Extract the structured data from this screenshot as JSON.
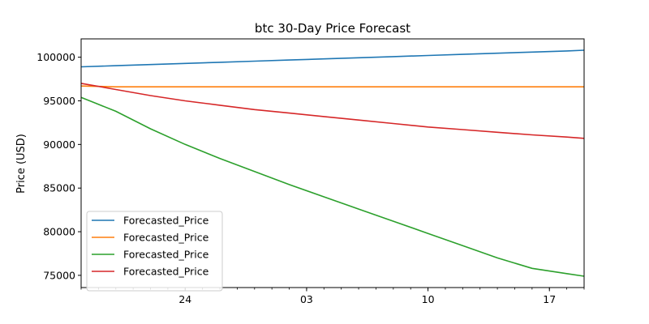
{
  "chart_data": {
    "type": "line",
    "title": "btc 30-Day Price Forecast",
    "xlabel": "",
    "ylabel": "Price (USD)",
    "x": [
      0,
      2,
      4,
      6,
      8,
      10,
      12,
      14,
      16,
      18,
      20,
      22,
      24,
      26,
      28,
      29
    ],
    "xlim": [
      0,
      29
    ],
    "ylim": [
      73600,
      102100
    ],
    "yticks": [
      75000,
      80000,
      85000,
      90000,
      95000,
      100000
    ],
    "xticks": [
      {
        "x": 6,
        "label": "24"
      },
      {
        "x": 13,
        "label": "03"
      },
      {
        "x": 20,
        "label": "10"
      },
      {
        "x": 27,
        "label": "17"
      }
    ],
    "xminor": [
      0,
      1,
      2,
      3,
      4,
      5,
      6,
      7,
      8,
      9,
      10,
      11,
      12,
      13,
      14,
      15,
      16,
      17,
      18,
      19,
      20,
      21,
      22,
      23,
      24,
      25,
      26,
      27,
      28,
      29
    ],
    "grid": false,
    "legend": "lower-left",
    "series": [
      {
        "name": "Forecasted_Price",
        "color": "#1f77b4",
        "values": [
          98900,
          99030,
          99160,
          99290,
          99420,
          99550,
          99680,
          99810,
          99940,
          100070,
          100200,
          100330,
          100460,
          100590,
          100720,
          100800
        ]
      },
      {
        "name": "Forecasted_Price",
        "color": "#ff7f0e",
        "values": [
          96700,
          96600,
          96600,
          96600,
          96600,
          96600,
          96600,
          96600,
          96600,
          96600,
          96600,
          96600,
          96600,
          96600,
          96600,
          96600
        ]
      },
      {
        "name": "Forecasted_Price",
        "color": "#2ca02c",
        "values": [
          95400,
          93800,
          91800,
          90000,
          88400,
          86900,
          85400,
          84000,
          82600,
          81200,
          79800,
          78400,
          77000,
          75800,
          75200,
          74900
        ]
      },
      {
        "name": "Forecasted_Price",
        "color": "#d62728",
        "values": [
          97000,
          96300,
          95600,
          95000,
          94500,
          94000,
          93600,
          93200,
          92800,
          92400,
          92000,
          91700,
          91400,
          91100,
          90850,
          90700
        ]
      }
    ]
  }
}
